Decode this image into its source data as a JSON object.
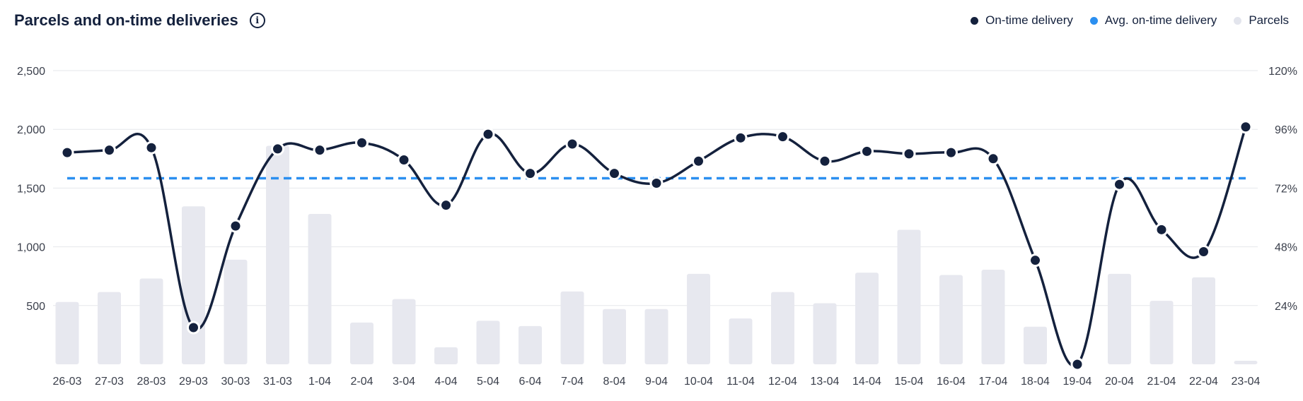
{
  "header": {
    "title": "Parcels and on-time deliveries",
    "info_icon": "info-icon"
  },
  "legend": [
    {
      "label": "On-time delivery",
      "color": "#14213d"
    },
    {
      "label": "Avg. on-time delivery",
      "color": "#2b8ff0"
    },
    {
      "label": "Parcels",
      "color": "#e3e5ed"
    }
  ],
  "chart_data": {
    "type": "bar",
    "categories": [
      "26-03",
      "27-03",
      "28-03",
      "29-03",
      "30-03",
      "31-03",
      "1-04",
      "2-04",
      "3-04",
      "4-04",
      "5-04",
      "6-04",
      "7-04",
      "8-04",
      "9-04",
      "10-04",
      "11-04",
      "12-04",
      "13-04",
      "14-04",
      "15-04",
      "16-04",
      "17-04",
      "18-04",
      "19-04",
      "20-04",
      "21-04",
      "22-04",
      "23-04"
    ],
    "left_axis": {
      "ticks": [
        500,
        1000,
        1500,
        2000,
        2500
      ],
      "tick_labels": [
        "500",
        "1,000",
        "1,500",
        "2,000",
        "2,500"
      ],
      "range": [
        0,
        2500
      ]
    },
    "right_axis": {
      "ticks": [
        24,
        48,
        72,
        96,
        120
      ],
      "tick_labels": [
        "24%",
        "48%",
        "72%",
        "96%",
        "120%"
      ],
      "range": [
        0,
        120
      ]
    },
    "grid": true,
    "legend_position": "top-right",
    "series": [
      {
        "name": "Parcels",
        "type": "bar",
        "axis": "left",
        "color": "#e7e8ef",
        "values": [
          530,
          615,
          730,
          1345,
          890,
          1860,
          1280,
          355,
          555,
          145,
          370,
          325,
          620,
          470,
          470,
          770,
          390,
          615,
          520,
          780,
          1145,
          760,
          805,
          320,
          0,
          770,
          540,
          740,
          30
        ]
      },
      {
        "name": "On-time delivery",
        "type": "line",
        "axis": "right",
        "color": "#14213d",
        "values": [
          86.5,
          87.5,
          88.5,
          15,
          56.5,
          88,
          87.5,
          90.5,
          83.5,
          65,
          94,
          78,
          90,
          78,
          74,
          83,
          92.5,
          93,
          83,
          87,
          86,
          86.5,
          84,
          42.5,
          0,
          73.5,
          55,
          46,
          97
        ]
      },
      {
        "name": "Avg. on-time delivery",
        "type": "line",
        "axis": "right",
        "style": "dashed",
        "color": "#2b8ff0",
        "values": [
          76,
          76,
          76,
          76,
          76,
          76,
          76,
          76,
          76,
          76,
          76,
          76,
          76,
          76,
          76,
          76,
          76,
          76,
          76,
          76,
          76,
          76,
          76,
          76,
          76,
          76,
          76,
          76,
          76
        ]
      }
    ]
  }
}
